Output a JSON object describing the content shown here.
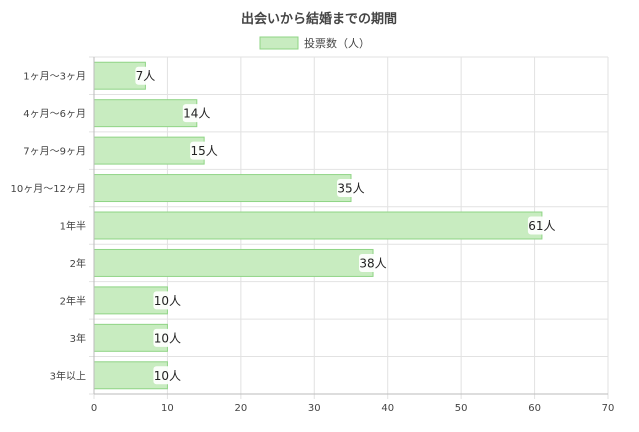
{
  "chart_data": {
    "type": "bar",
    "orientation": "horizontal",
    "title": "出会いから結婚までの期間",
    "legend_position": "top-center",
    "grid": true,
    "xlim": [
      0,
      70
    ],
    "xticks": [
      0,
      10,
      20,
      30,
      40,
      50,
      60,
      70
    ],
    "categories": [
      "1ヶ月〜3ヶ月",
      "4ヶ月〜6ヶ月",
      "7ヶ月〜9ヶ月",
      "10ヶ月〜12ヶ月",
      "1年半",
      "2年",
      "2年半",
      "3年",
      "3年以上"
    ],
    "series": [
      {
        "name": "投票数（人）",
        "values": [
          7,
          14,
          15,
          35,
          61,
          38,
          10,
          10,
          10
        ],
        "data_labels": [
          "7人",
          "14人",
          "15人",
          "35人",
          "61人",
          "38人",
          "10人",
          "10人",
          "10人"
        ],
        "fill": "#c8ecc0",
        "stroke": "#8fd485"
      }
    ],
    "colors": {
      "grid": "#e2e2e2",
      "axis": "#666666",
      "text": "#444444",
      "title": "#444444"
    }
  }
}
